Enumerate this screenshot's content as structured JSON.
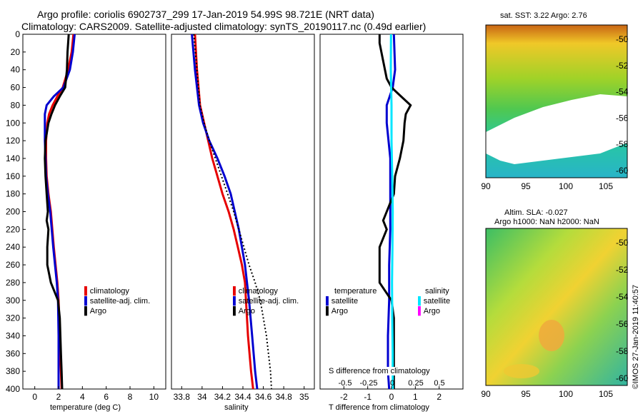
{
  "title": {
    "line1": "Argo profile: coriolis 6902737_299 17-Jan-2019 54.99S 98.721E (NRT data)",
    "line2": "Climatology: CARS2009. Satellite-adjusted climatology: synTS_20190117.nc (0.49d earlier)"
  },
  "colors": {
    "climatology": "#e60000",
    "satellite": "#0000d0",
    "argo": "#000000",
    "salinity_sat": "#00e6ff",
    "salinity_argo": "#ff00ff"
  },
  "chart_data": [
    {
      "type": "line",
      "name": "temperature",
      "xlabel": "temperature (deg C)",
      "ylabel": "",
      "xlim": [
        -1,
        11
      ],
      "ylim": [
        400,
        0
      ],
      "xticks": [
        "0",
        "2",
        "4",
        "6",
        "8",
        "10"
      ],
      "yticks": [
        "0",
        "20",
        "40",
        "60",
        "80",
        "100",
        "120",
        "140",
        "160",
        "180",
        "200",
        "220",
        "240",
        "260",
        "280",
        "300",
        "320",
        "340",
        "360",
        "380",
        "400"
      ],
      "legend": [
        "climatology",
        "satellite-adj. clim.",
        "Argo"
      ],
      "series": [
        {
          "name": "climatology",
          "depth": [
            0,
            20,
            40,
            60,
            70,
            80,
            90,
            100,
            120,
            140,
            160,
            180,
            200,
            240,
            280,
            300,
            340,
            380,
            400
          ],
          "values": [
            3.25,
            3.1,
            2.8,
            2.35,
            1.9,
            1.5,
            1.2,
            1.05,
            0.95,
            0.95,
            1.0,
            1.15,
            1.35,
            1.6,
            1.9,
            2.0,
            2.1,
            2.2,
            2.25
          ]
        },
        {
          "name": "satellite-adj. clim.",
          "depth": [
            0,
            20,
            40,
            60,
            70,
            80,
            90,
            100,
            120,
            140,
            160,
            180,
            200,
            240,
            280,
            300,
            340,
            380,
            400
          ],
          "values": [
            3.35,
            3.2,
            2.95,
            2.4,
            1.6,
            1.0,
            0.85,
            0.85,
            0.85,
            0.9,
            0.95,
            1.1,
            1.3,
            1.55,
            1.85,
            1.95,
            2.0,
            2.0,
            2.0
          ]
        },
        {
          "name": "Argo",
          "depth": [
            0,
            20,
            40,
            60,
            70,
            80,
            90,
            100,
            120,
            140,
            160,
            180,
            200,
            210,
            220,
            240,
            260,
            280,
            300,
            320,
            340,
            360,
            380,
            400
          ],
          "values": [
            2.85,
            2.75,
            2.7,
            2.55,
            2.1,
            1.7,
            1.4,
            1.15,
            0.9,
            0.85,
            0.9,
            1.0,
            1.1,
            1.0,
            1.15,
            1.05,
            1.05,
            1.35,
            1.95,
            2.1,
            2.15,
            2.2,
            2.25,
            2.3
          ]
        }
      ]
    },
    {
      "type": "line",
      "name": "salinity",
      "xlabel": "salinity",
      "xlim": [
        33.7,
        35.1
      ],
      "ylim": [
        400,
        0
      ],
      "xticks": [
        "33.8",
        "34",
        "34.2",
        "34.4",
        "34.6",
        "34.8",
        "35"
      ],
      "legend": [
        "climatology",
        "satellite-adj. clim.",
        "Argo"
      ],
      "series": [
        {
          "name": "climatology",
          "depth": [
            0,
            40,
            80,
            100,
            120,
            140,
            160,
            180,
            200,
            220,
            240,
            260,
            280,
            300,
            340,
            380,
            400
          ],
          "values": [
            33.93,
            33.95,
            33.98,
            34.02,
            34.06,
            34.1,
            34.15,
            34.2,
            34.26,
            34.31,
            34.35,
            34.39,
            34.42,
            34.43,
            34.45,
            34.48,
            34.5
          ]
        },
        {
          "name": "satellite-adj. clim.",
          "depth": [
            0,
            40,
            80,
            100,
            120,
            140,
            160,
            180,
            200,
            220,
            240,
            260,
            280,
            300,
            340,
            380,
            400
          ],
          "values": [
            33.9,
            33.93,
            33.97,
            34.01,
            34.07,
            34.15,
            34.22,
            34.28,
            34.32,
            34.36,
            34.39,
            34.42,
            34.44,
            34.46,
            34.49,
            34.52,
            34.54
          ]
        },
        {
          "name": "Argo",
          "depth": [
            0,
            40,
            80,
            100,
            120,
            140,
            160,
            180,
            200,
            220,
            240,
            260,
            280,
            300,
            340,
            380,
            400
          ],
          "values": [
            33.92,
            33.95,
            33.98,
            34.02,
            34.07,
            34.13,
            34.19,
            34.25,
            34.31,
            34.36,
            34.41,
            34.46,
            34.52,
            34.57,
            34.63,
            34.67,
            34.68
          ],
          "style": "dotted"
        }
      ]
    },
    {
      "type": "line",
      "name": "differences",
      "xlabel": "T difference from climatology",
      "xlim": [
        -3,
        3
      ],
      "ylim": [
        400,
        0
      ],
      "xticks": [
        "-2",
        "-1",
        "0",
        "1",
        "2"
      ],
      "top_axis_label": "S difference from climatology",
      "top_ticks": [
        "-0.5",
        "-0.25",
        "0",
        "0.25",
        "0.5"
      ],
      "legend_temperature": {
        "title": "temperature",
        "items": [
          "satellite",
          "Argo"
        ]
      },
      "legend_salinity": {
        "title": "salinity",
        "items": [
          "satellite",
          "Argo"
        ]
      },
      "series": [
        {
          "name": "temperature satellite",
          "depth": [
            0,
            40,
            60,
            80,
            100,
            140,
            180,
            220,
            260,
            300,
            340,
            380,
            400
          ],
          "values": [
            0.1,
            0.15,
            0.05,
            -0.2,
            -0.2,
            -0.05,
            -0.05,
            -0.05,
            -0.1,
            -0.1,
            -0.15,
            -0.15,
            -0.1
          ]
        },
        {
          "name": "temperature Argo",
          "depth": [
            0,
            10,
            30,
            50,
            60,
            70,
            80,
            90,
            100,
            120,
            140,
            160,
            180,
            200,
            210,
            220,
            240,
            260,
            280,
            300,
            320,
            340,
            380,
            400
          ],
          "values": [
            -0.5,
            -0.5,
            -0.35,
            -0.2,
            0.0,
            0.4,
            0.8,
            0.6,
            0.55,
            0.5,
            0.35,
            0.15,
            0.1,
            -0.2,
            -0.35,
            -0.2,
            -0.5,
            -0.5,
            -0.5,
            0.0,
            0.1,
            0.1,
            0.1,
            0.1
          ]
        },
        {
          "name": "salinity satellite",
          "depth": [
            0,
            40,
            80,
            120,
            160,
            200,
            240,
            280,
            320,
            360,
            400
          ],
          "values": [
            -0.02,
            -0.03,
            0.0,
            0.0,
            0.03,
            0.05,
            0.04,
            0.02,
            0.03,
            0.05,
            0.05
          ]
        }
      ]
    }
  ],
  "maps": {
    "sst": {
      "title": "sat. SST: 3.22 Argo: 2.76",
      "yticks": [
        "-50",
        "-52",
        "-54",
        "-56",
        "-58",
        "-60"
      ],
      "xticks": [
        "90",
        "95",
        "100",
        "105"
      ]
    },
    "sla": {
      "title1": "Altim. SLA: -0.027",
      "title2": "Argo h1000: NaN h2000: NaN",
      "yticks": [
        "-50",
        "-52",
        "-54",
        "-56",
        "-58",
        "-60"
      ],
      "xticks": [
        "90",
        "95",
        "100",
        "105"
      ]
    }
  },
  "credit": "©IMOS 27-Jan-2019 11:40:57"
}
